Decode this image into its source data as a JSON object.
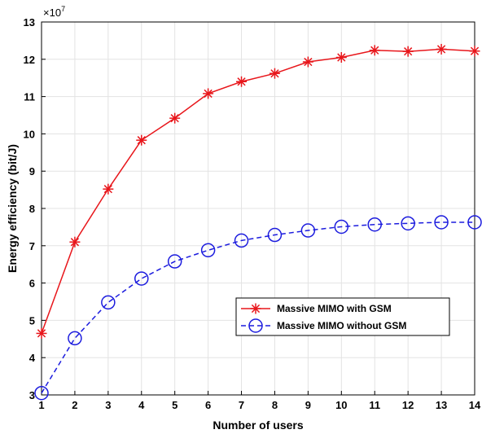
{
  "chart_data": {
    "type": "line",
    "title": "",
    "xlabel": "Number of users",
    "ylabel": "Energy efficiency (bit/J)",
    "y_exponent_base": "×10",
    "y_exponent_power": "7",
    "xlim": [
      1,
      14
    ],
    "ylim": [
      3,
      13
    ],
    "x": [
      1,
      2,
      3,
      4,
      5,
      6,
      7,
      8,
      9,
      10,
      11,
      12,
      13,
      14
    ],
    "x_ticks": [
      "1",
      "2",
      "3",
      "4",
      "5",
      "6",
      "7",
      "8",
      "9",
      "10",
      "11",
      "12",
      "13",
      "14"
    ],
    "y_ticks": [
      "3",
      "4",
      "5",
      "6",
      "7",
      "8",
      "9",
      "10",
      "11",
      "12",
      "13"
    ],
    "grid": true,
    "legend_position": "lower-right",
    "series": [
      {
        "name": "Massive MIMO with GSM",
        "color": "#e8161b",
        "marker": "asterisk",
        "line_style": "solid",
        "values": [
          4.65,
          7.1,
          8.52,
          9.83,
          10.42,
          11.08,
          11.4,
          11.62,
          11.93,
          12.05,
          12.24,
          12.21,
          12.27,
          12.22
        ]
      },
      {
        "name": "Massive MIMO without GSM",
        "color": "#1c1cde",
        "marker": "circle",
        "line_style": "dashed",
        "values": [
          3.05,
          4.52,
          5.48,
          6.12,
          6.58,
          6.88,
          7.14,
          7.29,
          7.41,
          7.51,
          7.57,
          7.6,
          7.63,
          7.63
        ]
      }
    ]
  }
}
